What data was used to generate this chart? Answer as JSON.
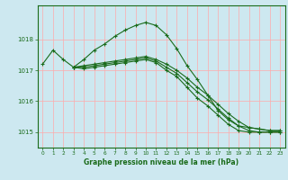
{
  "title": "Graphe pression niveau de la mer (hPa)",
  "background_color": "#cde8f0",
  "grid_color": "#ffaaaa",
  "line_color": "#1a6b1a",
  "xlim": [
    -0.5,
    23.5
  ],
  "ylim": [
    1014.5,
    1019.1
  ],
  "yticks": [
    1015,
    1016,
    1017,
    1018
  ],
  "xticks": [
    0,
    1,
    2,
    3,
    4,
    5,
    6,
    7,
    8,
    9,
    10,
    11,
    12,
    13,
    14,
    15,
    16,
    17,
    18,
    19,
    20,
    21,
    22,
    23
  ],
  "series": [
    {
      "x": [
        0,
        1,
        2,
        3,
        4,
        5,
        6,
        7,
        8,
        9,
        10,
        11,
        12,
        13,
        14,
        15,
        16,
        17,
        18,
        19,
        20,
        21,
        22,
        23
      ],
      "y": [
        1017.2,
        1017.65,
        1017.35,
        1017.1,
        1017.35,
        1017.65,
        1017.85,
        1018.1,
        1018.3,
        1018.45,
        1018.55,
        1018.45,
        1018.15,
        1017.7,
        1017.15,
        1016.7,
        1016.2,
        1015.7,
        1015.4,
        1015.2,
        1015.15,
        1015.1,
        1015.05,
        1015.05
      ]
    },
    {
      "x": [
        3,
        4,
        5,
        6,
        7,
        8,
        9,
        10,
        11,
        12,
        13,
        14,
        15,
        16,
        17,
        18,
        19,
        20,
        21,
        22,
        23
      ],
      "y": [
        1017.1,
        1017.15,
        1017.2,
        1017.25,
        1017.3,
        1017.35,
        1017.4,
        1017.45,
        1017.35,
        1017.2,
        1017.0,
        1016.75,
        1016.45,
        1016.2,
        1015.9,
        1015.6,
        1015.35,
        1015.15,
        1015.1,
        1015.05,
        1015.05
      ]
    },
    {
      "x": [
        3,
        4,
        5,
        6,
        7,
        8,
        9,
        10,
        11,
        12,
        13,
        14,
        15,
        16,
        17,
        18,
        19,
        20,
        21,
        22,
        23
      ],
      "y": [
        1017.1,
        1017.1,
        1017.15,
        1017.2,
        1017.25,
        1017.3,
        1017.35,
        1017.4,
        1017.3,
        1017.1,
        1016.9,
        1016.6,
        1016.3,
        1016.05,
        1015.75,
        1015.45,
        1015.2,
        1015.05,
        1015.0,
        1015.0,
        1015.0
      ]
    },
    {
      "x": [
        3,
        4,
        5,
        6,
        7,
        8,
        9,
        10,
        11,
        12,
        13,
        14,
        15,
        16,
        17,
        18,
        19,
        20,
        21,
        22,
        23
      ],
      "y": [
        1017.1,
        1017.05,
        1017.1,
        1017.15,
        1017.2,
        1017.25,
        1017.3,
        1017.35,
        1017.25,
        1017.0,
        1016.8,
        1016.45,
        1016.1,
        1015.85,
        1015.55,
        1015.25,
        1015.05,
        1015.0,
        1015.0,
        1015.0,
        1015.0
      ]
    }
  ]
}
